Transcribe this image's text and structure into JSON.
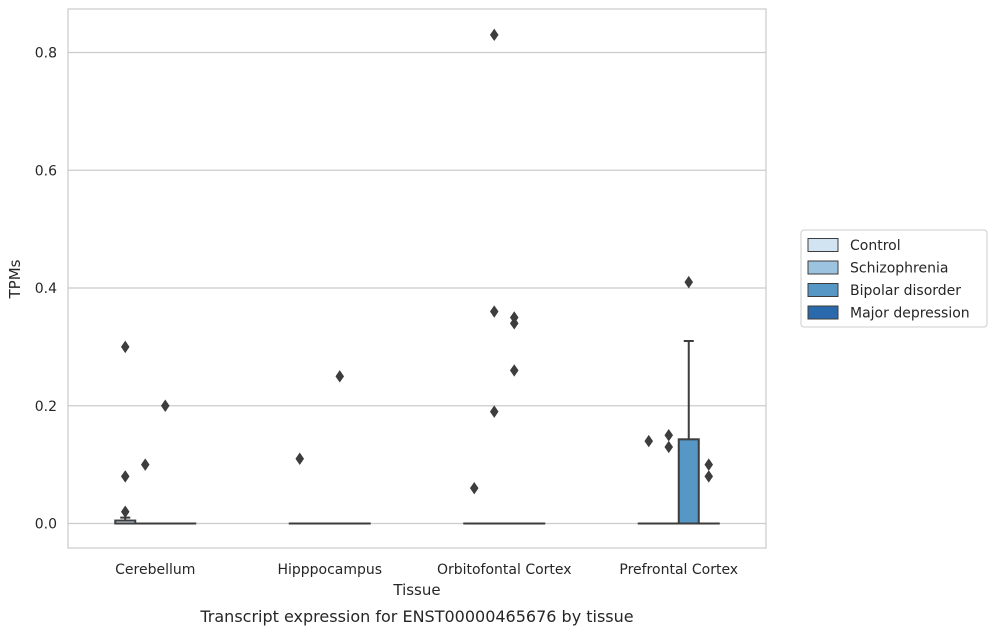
{
  "colors": {
    "grid": "#cccccc",
    "frame": "#cccccc",
    "box_edge": "#3d3d3d",
    "text": "#262626"
  },
  "chart_data": {
    "type": "box",
    "caption": "Transcript expression for ENST00000465676 by tissue",
    "xlabel": "Tissue",
    "ylabel": "TPMs",
    "ylim": [
      -0.04,
      0.873
    ],
    "yticks": [
      0.0,
      0.2,
      0.4,
      0.6,
      0.8
    ],
    "ytick_labels": [
      "0.0",
      "0.2",
      "0.4",
      "0.6",
      "0.8"
    ],
    "grid": "horizontal",
    "legend_position": "right-outside",
    "categories": [
      "Cerebellum",
      "Hipppocampus",
      "Orbitofontal Cortex",
      "Prefrontal Cortex"
    ],
    "series": [
      {
        "name": "Control",
        "color": "#d2e3f2",
        "boxes": [
          {
            "q1": 0.0,
            "median": 0.0,
            "q3": 0.005,
            "whisker_low": 0.0,
            "whisker_high": 0.01,
            "outliers": [
              0.02,
              0.08,
              0.3
            ]
          },
          {
            "q1": 0.0,
            "median": 0.0,
            "q3": 0.0,
            "whisker_low": 0.0,
            "whisker_high": 0.0,
            "outliers": [
              0.11
            ]
          },
          {
            "q1": 0.0,
            "median": 0.0,
            "q3": 0.0,
            "whisker_low": 0.0,
            "whisker_high": 0.0,
            "outliers": [
              0.06
            ]
          },
          {
            "q1": 0.0,
            "median": 0.0,
            "q3": 0.0,
            "whisker_low": 0.0,
            "whisker_high": 0.0,
            "outliers": [
              0.14
            ]
          }
        ]
      },
      {
        "name": "Schizophrenia",
        "color": "#9cc3df",
        "boxes": [
          {
            "q1": 0.0,
            "median": 0.0,
            "q3": 0.0,
            "whisker_low": 0.0,
            "whisker_high": 0.0,
            "outliers": [
              0.1
            ]
          },
          {
            "q1": 0.0,
            "median": 0.0,
            "q3": 0.0,
            "whisker_low": 0.0,
            "whisker_high": 0.0,
            "outliers": []
          },
          {
            "q1": 0.0,
            "median": 0.0,
            "q3": 0.0,
            "whisker_low": 0.0,
            "whisker_high": 0.0,
            "outliers": [
              0.19,
              0.36,
              0.83
            ]
          },
          {
            "q1": 0.0,
            "median": 0.0,
            "q3": 0.0,
            "whisker_low": 0.0,
            "whisker_high": 0.0,
            "outliers": [
              0.13,
              0.15
            ]
          }
        ]
      },
      {
        "name": "Bipolar disorder",
        "color": "#5697c5",
        "boxes": [
          {
            "q1": 0.0,
            "median": 0.0,
            "q3": 0.0,
            "whisker_low": 0.0,
            "whisker_high": 0.0,
            "outliers": [
              0.2
            ]
          },
          {
            "q1": 0.0,
            "median": 0.0,
            "q3": 0.0,
            "whisker_low": 0.0,
            "whisker_high": 0.0,
            "outliers": [
              0.25
            ]
          },
          {
            "q1": 0.0,
            "median": 0.0,
            "q3": 0.0,
            "whisker_low": 0.0,
            "whisker_high": 0.0,
            "outliers": [
              0.26,
              0.34,
              0.35
            ]
          },
          {
            "q1": 0.0,
            "median": 0.0,
            "q3": 0.143,
            "whisker_low": 0.0,
            "whisker_high": 0.31,
            "outliers": [
              0.41
            ]
          }
        ]
      },
      {
        "name": "Major depression",
        "color": "#2a6aac",
        "boxes": [
          {
            "q1": 0.0,
            "median": 0.0,
            "q3": 0.0,
            "whisker_low": 0.0,
            "whisker_high": 0.0,
            "outliers": []
          },
          {
            "q1": 0.0,
            "median": 0.0,
            "q3": 0.0,
            "whisker_low": 0.0,
            "whisker_high": 0.0,
            "outliers": []
          },
          {
            "q1": 0.0,
            "median": 0.0,
            "q3": 0.0,
            "whisker_low": 0.0,
            "whisker_high": 0.0,
            "outliers": []
          },
          {
            "q1": 0.0,
            "median": 0.0,
            "q3": 0.0,
            "whisker_low": 0.0,
            "whisker_high": 0.0,
            "outliers": [
              0.08,
              0.1
            ]
          }
        ]
      }
    ]
  }
}
